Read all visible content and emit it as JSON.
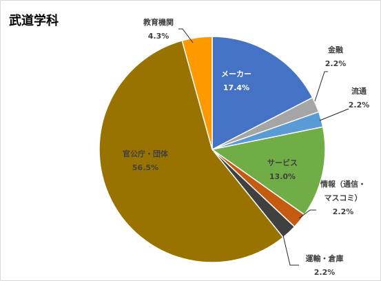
{
  "chart_data": {
    "type": "pie",
    "title": "武道学科",
    "start_angle_deg": 0,
    "direction": "clockwise",
    "slices": [
      {
        "label_lines": [
          "メーカー"
        ],
        "value": 17.4,
        "value_label": "17.4%",
        "color": "#4472C4",
        "label_pos": "inside"
      },
      {
        "label_lines": [
          "金融"
        ],
        "value": 2.2,
        "value_label": "2.2%",
        "color": "#A5A5A5",
        "label_pos": "outside"
      },
      {
        "label_lines": [
          "流通"
        ],
        "value": 2.2,
        "value_label": "2.2%",
        "color": "#5B9BD5",
        "label_pos": "outside"
      },
      {
        "label_lines": [
          "サービス"
        ],
        "value": 13.0,
        "value_label": "13.0%",
        "color": "#70AD47",
        "label_pos": "inside"
      },
      {
        "label_lines": [
          "情報（通信・",
          "マスコミ）"
        ],
        "value": 2.2,
        "value_label": "2.2%",
        "color": "#C55A11",
        "label_pos": "outside"
      },
      {
        "label_lines": [
          "運輸・倉庫"
        ],
        "value": 2.2,
        "value_label": "2.2%",
        "color": "#404040",
        "label_pos": "outside"
      },
      {
        "label_lines": [
          "官公庁・団体"
        ],
        "value": 56.5,
        "value_label": "56.5%",
        "color": "#997300",
        "label_pos": "inside"
      },
      {
        "label_lines": [
          "教育機関"
        ],
        "value": 4.3,
        "value_label": "4.3%",
        "color": "#FF9900",
        "label_pos": "outside"
      }
    ]
  }
}
